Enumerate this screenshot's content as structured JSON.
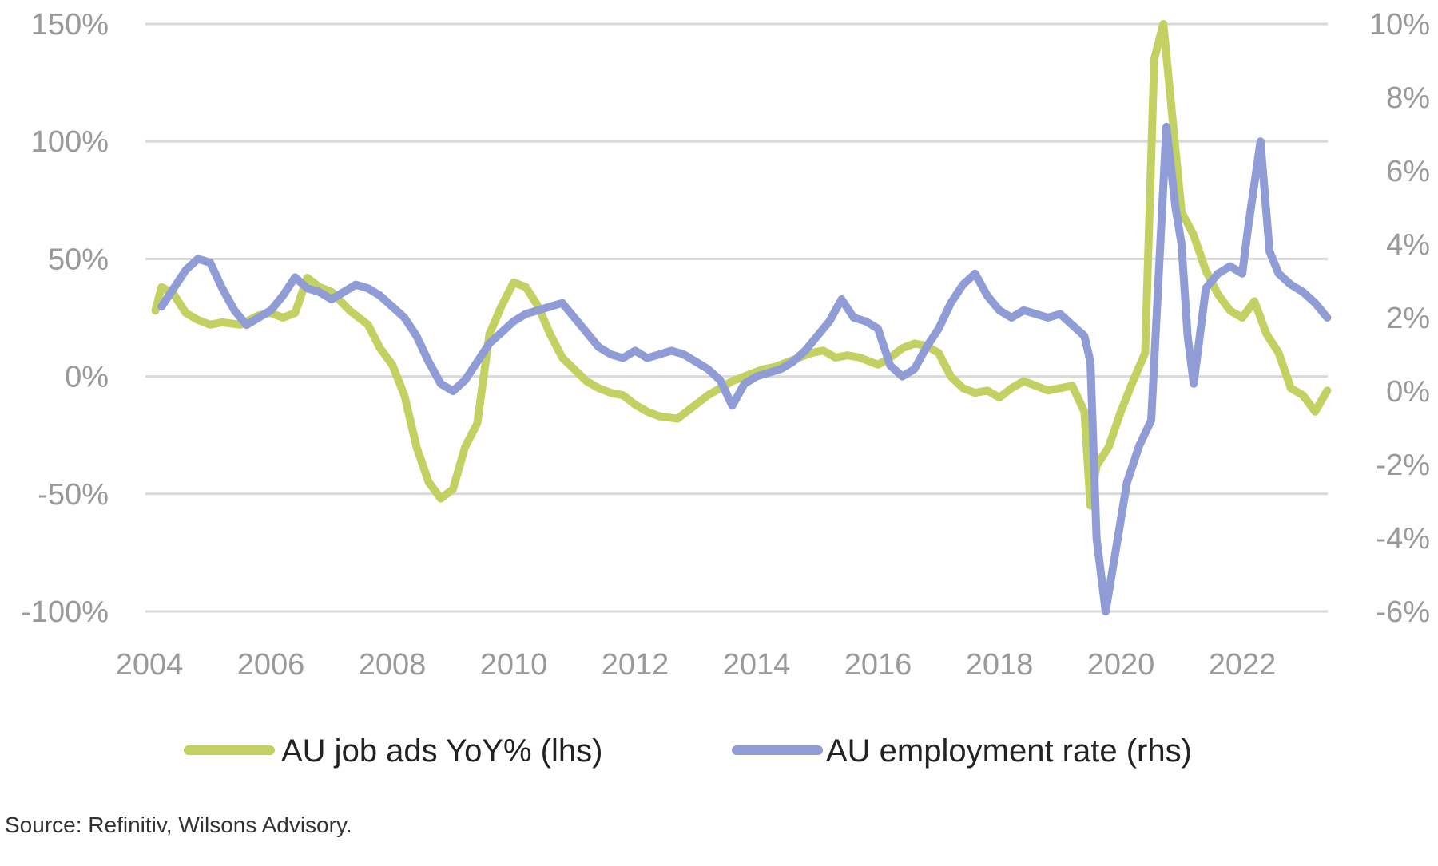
{
  "chart_data": {
    "type": "line",
    "x_axis": {
      "ticks": [
        "2004",
        "2006",
        "2008",
        "2010",
        "2012",
        "2014",
        "2016",
        "2018",
        "2020",
        "2022"
      ],
      "range": [
        2004.0,
        2023.4
      ]
    },
    "y_left": {
      "ticks": [
        "150%",
        "100%",
        "50%",
        "0%",
        "-50%",
        "-100%"
      ],
      "tick_values": [
        150,
        100,
        50,
        0,
        -50,
        -100
      ],
      "range": [
        -100,
        150
      ]
    },
    "y_right": {
      "ticks": [
        "10%",
        "8%",
        "6%",
        "4%",
        "2%",
        "0%",
        "-2%",
        "-4%",
        "-6%"
      ],
      "tick_values": [
        10,
        8,
        6,
        4,
        2,
        0,
        -2,
        -4,
        -6
      ],
      "range": [
        -6,
        10
      ]
    },
    "grid": true,
    "legend_position": "bottom",
    "series": [
      {
        "name": "AU job ads YoY% (lhs)",
        "axis": "left",
        "color": "#c3d162",
        "points": [
          [
            2004.1,
            28
          ],
          [
            2004.2,
            38
          ],
          [
            2004.4,
            35
          ],
          [
            2004.6,
            27
          ],
          [
            2004.8,
            24
          ],
          [
            2005.0,
            22
          ],
          [
            2005.2,
            23
          ],
          [
            2005.5,
            22
          ],
          [
            2005.8,
            26
          ],
          [
            2006.0,
            27
          ],
          [
            2006.2,
            25
          ],
          [
            2006.4,
            27
          ],
          [
            2006.6,
            42
          ],
          [
            2006.8,
            38
          ],
          [
            2007.0,
            36
          ],
          [
            2007.3,
            28
          ],
          [
            2007.6,
            22
          ],
          [
            2007.8,
            12
          ],
          [
            2008.0,
            5
          ],
          [
            2008.2,
            -8
          ],
          [
            2008.4,
            -30
          ],
          [
            2008.6,
            -45
          ],
          [
            2008.8,
            -52
          ],
          [
            2009.0,
            -48
          ],
          [
            2009.2,
            -30
          ],
          [
            2009.4,
            -20
          ],
          [
            2009.6,
            18
          ],
          [
            2009.8,
            30
          ],
          [
            2010.0,
            40
          ],
          [
            2010.2,
            38
          ],
          [
            2010.4,
            30
          ],
          [
            2010.6,
            18
          ],
          [
            2010.8,
            8
          ],
          [
            2011.0,
            3
          ],
          [
            2011.2,
            -2
          ],
          [
            2011.4,
            -5
          ],
          [
            2011.6,
            -7
          ],
          [
            2011.8,
            -8
          ],
          [
            2012.0,
            -12
          ],
          [
            2012.2,
            -15
          ],
          [
            2012.4,
            -17
          ],
          [
            2012.7,
            -18
          ],
          [
            2013.0,
            -12
          ],
          [
            2013.2,
            -8
          ],
          [
            2013.4,
            -5
          ],
          [
            2013.6,
            -2
          ],
          [
            2013.9,
            1
          ],
          [
            2014.1,
            3
          ],
          [
            2014.3,
            4
          ],
          [
            2014.5,
            6
          ],
          [
            2014.7,
            8
          ],
          [
            2014.9,
            10
          ],
          [
            2015.1,
            11
          ],
          [
            2015.3,
            8
          ],
          [
            2015.5,
            9
          ],
          [
            2015.7,
            8
          ],
          [
            2016.0,
            5
          ],
          [
            2016.2,
            8
          ],
          [
            2016.4,
            12
          ],
          [
            2016.6,
            14
          ],
          [
            2016.8,
            13
          ],
          [
            2017.0,
            10
          ],
          [
            2017.2,
            0
          ],
          [
            2017.4,
            -5
          ],
          [
            2017.6,
            -7
          ],
          [
            2017.8,
            -6
          ],
          [
            2018.0,
            -9
          ],
          [
            2018.2,
            -5
          ],
          [
            2018.4,
            -2
          ],
          [
            2018.6,
            -4
          ],
          [
            2018.8,
            -6
          ],
          [
            2019.0,
            -5
          ],
          [
            2019.2,
            -4
          ],
          [
            2019.4,
            -15
          ],
          [
            2019.5,
            -55
          ],
          [
            2019.6,
            -38
          ],
          [
            2019.8,
            -30
          ],
          [
            2020.0,
            -15
          ],
          [
            2020.2,
            -2
          ],
          [
            2020.4,
            10
          ],
          [
            2020.55,
            135
          ],
          [
            2020.7,
            150
          ],
          [
            2020.85,
            110
          ],
          [
            2021.0,
            70
          ],
          [
            2021.2,
            60
          ],
          [
            2021.4,
            45
          ],
          [
            2021.6,
            35
          ],
          [
            2021.8,
            28
          ],
          [
            2022.0,
            25
          ],
          [
            2022.2,
            32
          ],
          [
            2022.4,
            18
          ],
          [
            2022.6,
            10
          ],
          [
            2022.8,
            -5
          ],
          [
            2023.0,
            -8
          ],
          [
            2023.2,
            -15
          ],
          [
            2023.4,
            -6
          ]
        ]
      },
      {
        "name": "AU employment rate (rhs)",
        "axis": "right",
        "color": "#8f9cd6",
        "points": [
          [
            2004.2,
            2.3
          ],
          [
            2004.4,
            2.8
          ],
          [
            2004.6,
            3.3
          ],
          [
            2004.8,
            3.6
          ],
          [
            2005.0,
            3.5
          ],
          [
            2005.2,
            2.8
          ],
          [
            2005.4,
            2.2
          ],
          [
            2005.6,
            1.8
          ],
          [
            2005.8,
            2.0
          ],
          [
            2006.0,
            2.2
          ],
          [
            2006.2,
            2.6
          ],
          [
            2006.4,
            3.1
          ],
          [
            2006.6,
            2.8
          ],
          [
            2006.8,
            2.7
          ],
          [
            2007.0,
            2.5
          ],
          [
            2007.2,
            2.7
          ],
          [
            2007.4,
            2.9
          ],
          [
            2007.6,
            2.8
          ],
          [
            2007.8,
            2.6
          ],
          [
            2008.0,
            2.3
          ],
          [
            2008.2,
            2.0
          ],
          [
            2008.4,
            1.5
          ],
          [
            2008.6,
            0.8
          ],
          [
            2008.8,
            0.2
          ],
          [
            2009.0,
            0.0
          ],
          [
            2009.2,
            0.3
          ],
          [
            2009.4,
            0.8
          ],
          [
            2009.6,
            1.3
          ],
          [
            2009.8,
            1.6
          ],
          [
            2010.0,
            1.9
          ],
          [
            2010.2,
            2.1
          ],
          [
            2010.4,
            2.2
          ],
          [
            2010.6,
            2.3
          ],
          [
            2010.8,
            2.4
          ],
          [
            2011.0,
            2.0
          ],
          [
            2011.2,
            1.6
          ],
          [
            2011.4,
            1.2
          ],
          [
            2011.6,
            1.0
          ],
          [
            2011.8,
            0.9
          ],
          [
            2012.0,
            1.1
          ],
          [
            2012.2,
            0.9
          ],
          [
            2012.4,
            1.0
          ],
          [
            2012.6,
            1.1
          ],
          [
            2012.8,
            1.0
          ],
          [
            2013.0,
            0.8
          ],
          [
            2013.2,
            0.6
          ],
          [
            2013.4,
            0.3
          ],
          [
            2013.6,
            -0.4
          ],
          [
            2013.8,
            0.2
          ],
          [
            2014.0,
            0.4
          ],
          [
            2014.2,
            0.5
          ],
          [
            2014.4,
            0.6
          ],
          [
            2014.6,
            0.8
          ],
          [
            2014.8,
            1.1
          ],
          [
            2015.0,
            1.5
          ],
          [
            2015.2,
            1.9
          ],
          [
            2015.4,
            2.5
          ],
          [
            2015.6,
            2.0
          ],
          [
            2015.8,
            1.9
          ],
          [
            2016.0,
            1.7
          ],
          [
            2016.2,
            0.7
          ],
          [
            2016.4,
            0.4
          ],
          [
            2016.6,
            0.6
          ],
          [
            2016.8,
            1.2
          ],
          [
            2017.0,
            1.7
          ],
          [
            2017.2,
            2.4
          ],
          [
            2017.4,
            2.9
          ],
          [
            2017.6,
            3.2
          ],
          [
            2017.8,
            2.6
          ],
          [
            2018.0,
            2.2
          ],
          [
            2018.2,
            2.0
          ],
          [
            2018.4,
            2.2
          ],
          [
            2018.6,
            2.1
          ],
          [
            2018.8,
            2.0
          ],
          [
            2019.0,
            2.1
          ],
          [
            2019.2,
            1.8
          ],
          [
            2019.4,
            1.5
          ],
          [
            2019.5,
            0.8
          ],
          [
            2019.6,
            -4.0
          ],
          [
            2019.75,
            -6.0
          ],
          [
            2019.9,
            -4.5
          ],
          [
            2020.1,
            -2.5
          ],
          [
            2020.3,
            -1.5
          ],
          [
            2020.5,
            -0.8
          ],
          [
            2020.65,
            4.0
          ],
          [
            2020.75,
            7.2
          ],
          [
            2020.9,
            5.0
          ],
          [
            2021.0,
            4.0
          ],
          [
            2021.1,
            1.5
          ],
          [
            2021.2,
            0.2
          ],
          [
            2021.4,
            2.8
          ],
          [
            2021.6,
            3.2
          ],
          [
            2021.8,
            3.4
          ],
          [
            2022.0,
            3.2
          ],
          [
            2022.1,
            4.5
          ],
          [
            2022.3,
            6.8
          ],
          [
            2022.45,
            3.8
          ],
          [
            2022.6,
            3.2
          ],
          [
            2022.8,
            2.9
          ],
          [
            2023.0,
            2.7
          ],
          [
            2023.2,
            2.4
          ],
          [
            2023.4,
            2.0
          ]
        ]
      }
    ],
    "legend": [
      {
        "label": "AU job ads YoY% (lhs)",
        "color": "#c3d162"
      },
      {
        "label": "AU employment rate (rhs)",
        "color": "#8f9cd6"
      }
    ]
  },
  "footer": {
    "source": "Source: Refinitiv, Wilsons Advisory."
  }
}
